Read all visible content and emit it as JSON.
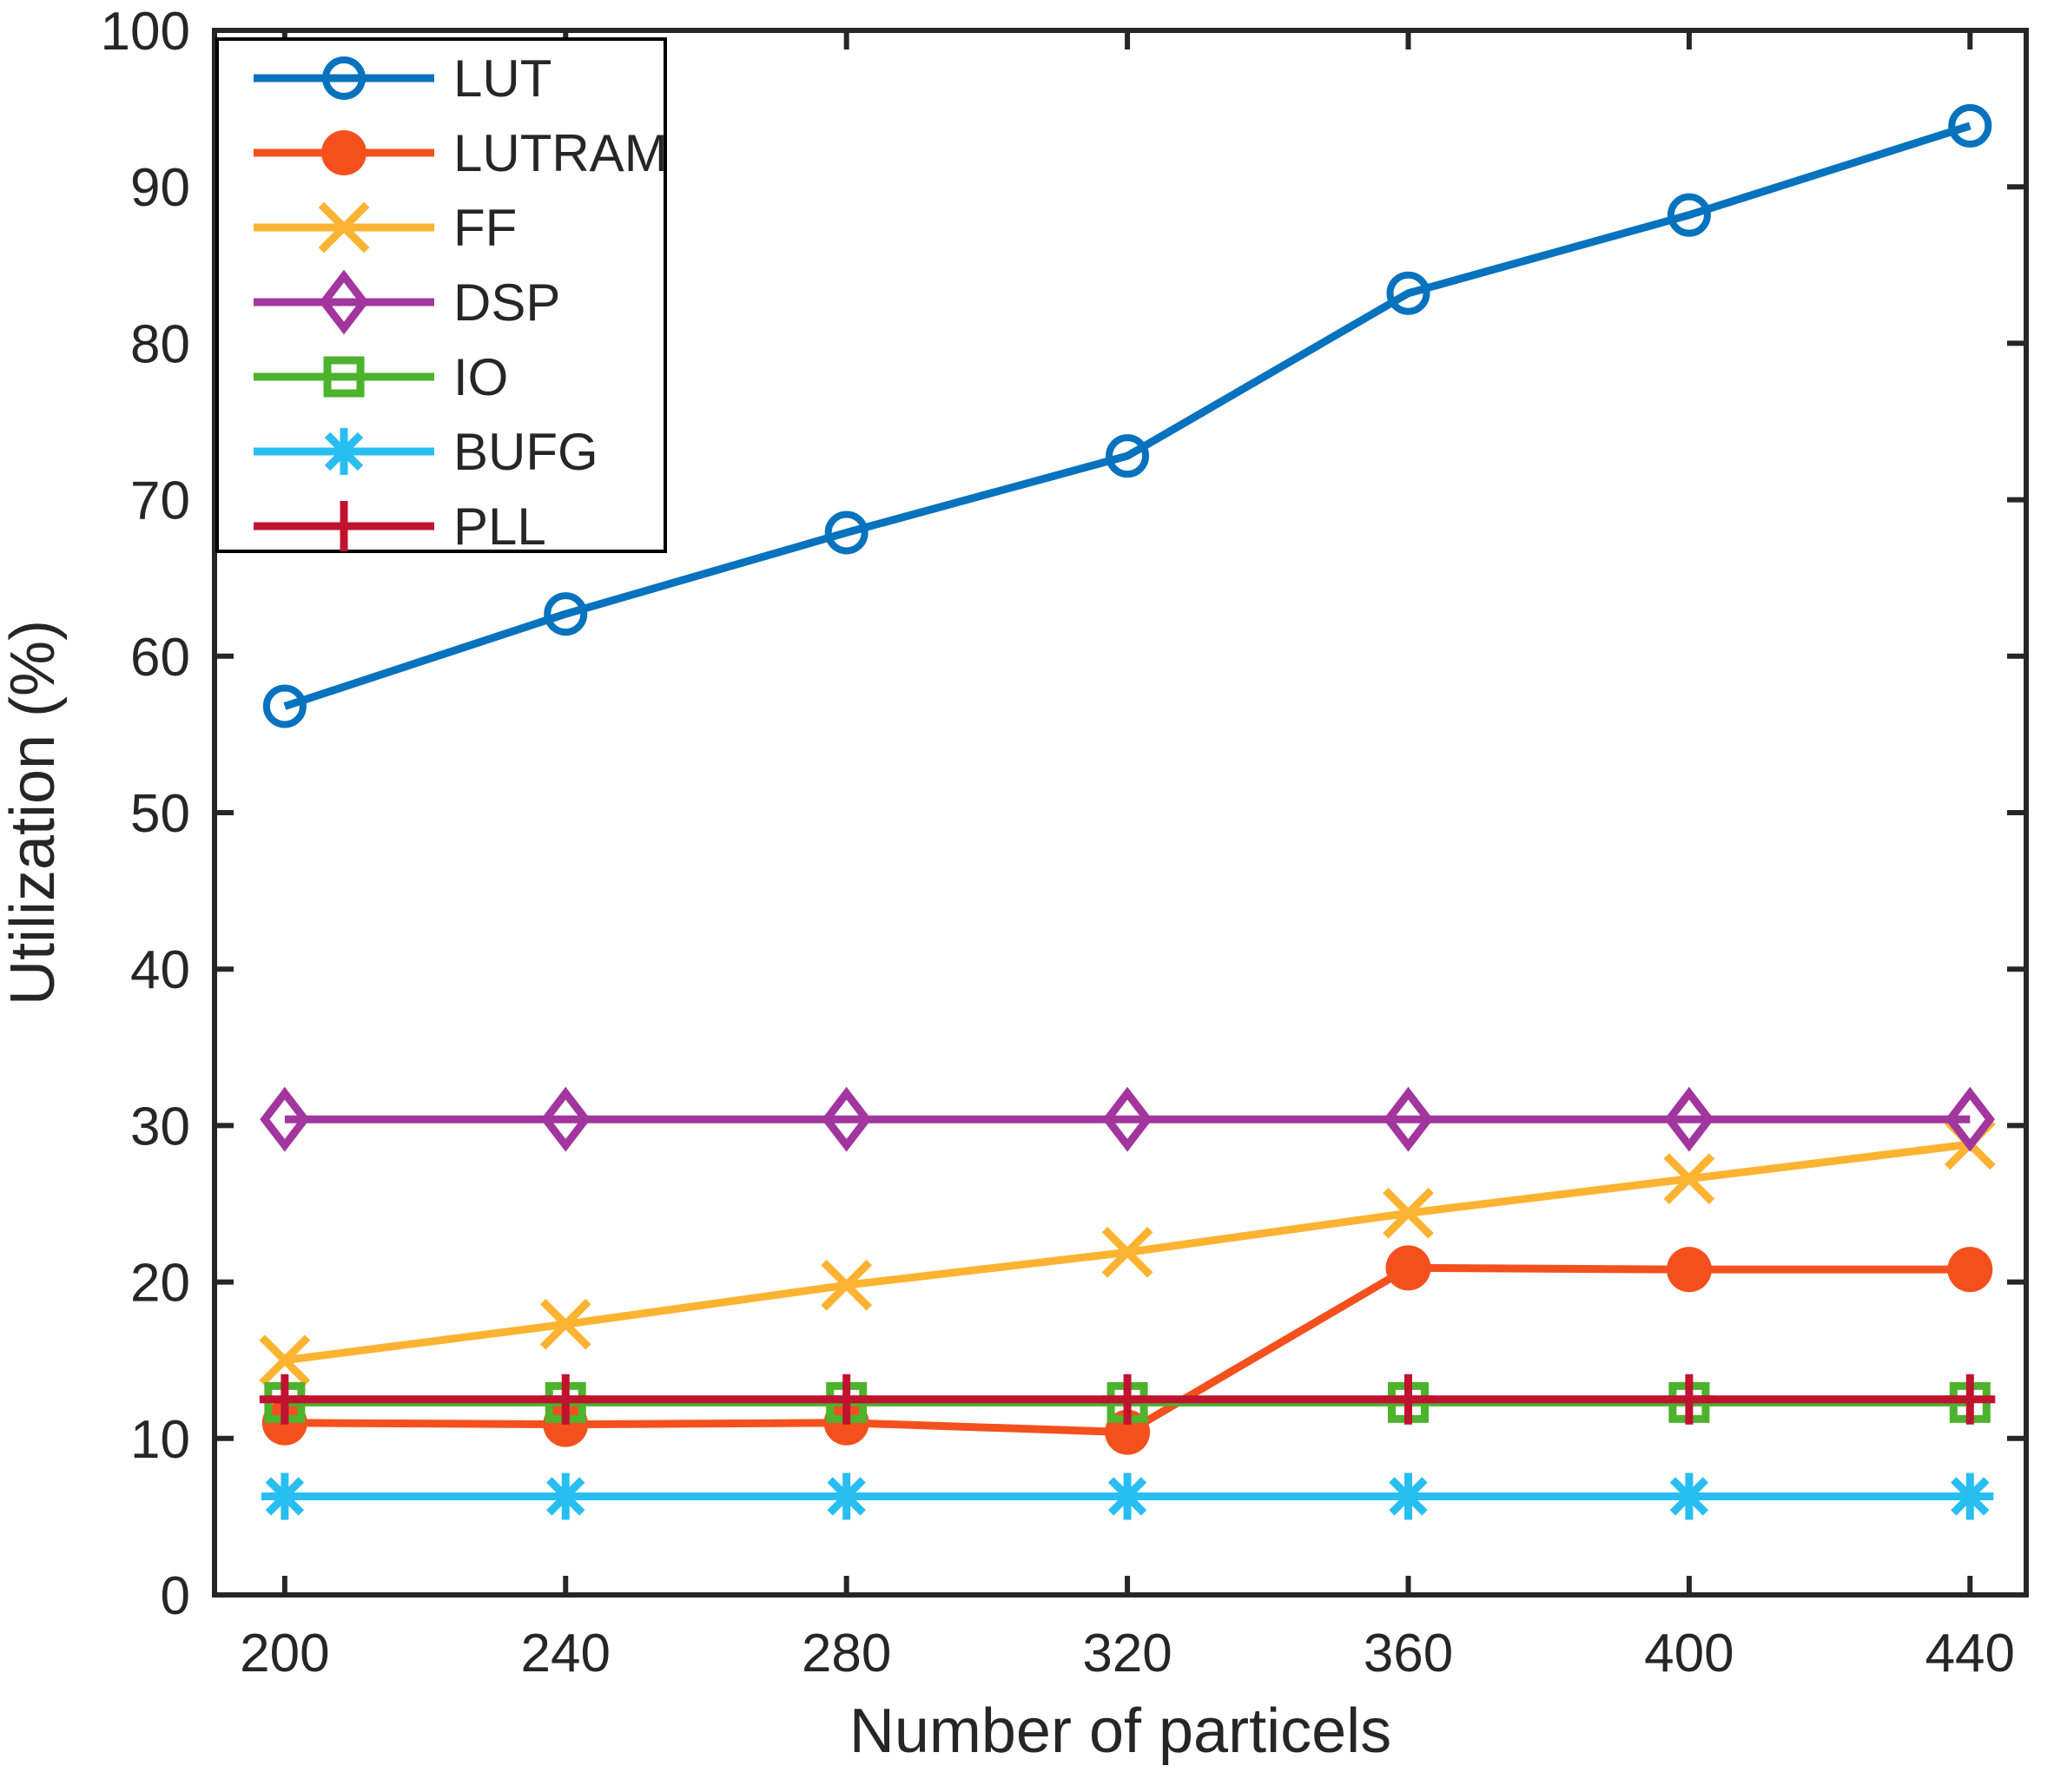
{
  "chart_data": {
    "type": "line",
    "title": "",
    "xlabel": "Number of particels",
    "ylabel": "Utilization (%)",
    "x": [
      200,
      240,
      280,
      320,
      360,
      400,
      440
    ],
    "xticks": [
      200,
      240,
      280,
      320,
      360,
      400,
      440
    ],
    "yticks": [
      0,
      10,
      20,
      30,
      40,
      50,
      60,
      70,
      80,
      90,
      100
    ],
    "xlim": [
      190,
      448
    ],
    "ylim": [
      0,
      100
    ],
    "grid": false,
    "legend_position": "top-left-inside",
    "axis_color": "#262626",
    "background_color": "#ffffff",
    "series": [
      {
        "name": "LUT",
        "marker": "circle-open",
        "color": "#0772be",
        "values": [
          56.8,
          62.7,
          67.9,
          72.8,
          83.2,
          88.2,
          93.9
        ]
      },
      {
        "name": "LUTRAM",
        "marker": "circle-filled",
        "color": "#f4501e",
        "values": [
          11.0,
          10.9,
          11.0,
          10.4,
          20.9,
          20.8,
          20.8
        ]
      },
      {
        "name": "FF",
        "marker": "x",
        "color": "#fcb331",
        "values": [
          15.0,
          17.3,
          19.8,
          21.9,
          24.4,
          26.6,
          28.8
        ]
      },
      {
        "name": "DSP",
        "marker": "diamond",
        "color": "#a2359e",
        "values": [
          30.4,
          30.4,
          30.4,
          30.4,
          30.4,
          30.4,
          30.4
        ]
      },
      {
        "name": "IO",
        "marker": "square",
        "color": "#4db22c",
        "values": [
          12.3,
          12.3,
          12.3,
          12.3,
          12.3,
          12.3,
          12.3
        ]
      },
      {
        "name": "BUFG",
        "marker": "asterisk",
        "color": "#29bef1",
        "values": [
          6.3,
          6.3,
          6.3,
          6.3,
          6.3,
          6.3,
          6.3
        ]
      },
      {
        "name": "PLL",
        "marker": "plus",
        "color": "#c01330",
        "values": [
          12.5,
          12.5,
          12.5,
          12.5,
          12.5,
          12.5,
          12.5
        ]
      }
    ]
  }
}
